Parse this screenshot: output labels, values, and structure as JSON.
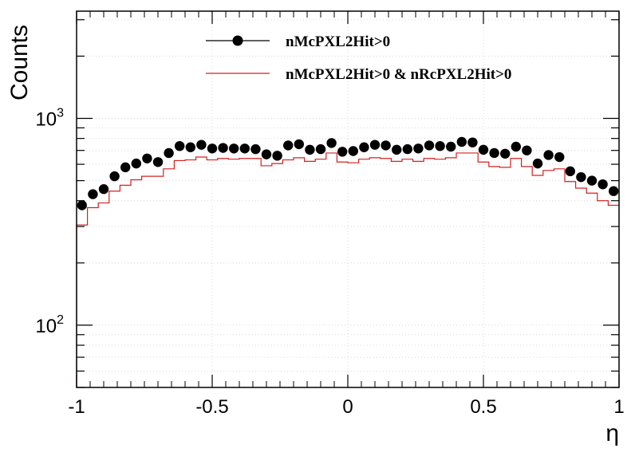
{
  "chart_data": {
    "type": "line",
    "xlabel": "η",
    "ylabel": "Counts",
    "xlim": [
      -1,
      1
    ],
    "ylim": [
      50,
      3300
    ],
    "yscale": "log",
    "grid": true,
    "legend": "top-center",
    "x_ticks": [
      -1,
      -0.5,
      0,
      0.5,
      1
    ],
    "x_tick_labels": [
      "-1",
      "-0.5",
      "0",
      "0.5",
      "1"
    ],
    "y_major_ticks": [
      100,
      1000
    ],
    "y_tick_bases": [
      "10",
      "10"
    ],
    "y_tick_exponents": [
      "2",
      "3"
    ],
    "x_bins": 50,
    "series": [
      {
        "name": "nMcPXL2Hit>0",
        "style": "markers",
        "color": "#000000",
        "values": [
          380,
          430,
          455,
          525,
          580,
          605,
          640,
          615,
          680,
          735,
          725,
          745,
          715,
          720,
          715,
          715,
          710,
          670,
          660,
          740,
          750,
          705,
          710,
          760,
          690,
          695,
          725,
          745,
          740,
          705,
          710,
          715,
          740,
          735,
          730,
          770,
          765,
          705,
          680,
          675,
          730,
          700,
          605,
          665,
          650,
          555,
          520,
          500,
          480,
          445
        ]
      },
      {
        "name": "nMcPXL2Hit>0 & nRcPXL2Hit>0",
        "style": "step",
        "color": "#d42020",
        "values": [
          305,
          370,
          390,
          445,
          475,
          505,
          525,
          525,
          570,
          625,
          630,
          650,
          630,
          640,
          635,
          640,
          640,
          590,
          605,
          630,
          645,
          620,
          635,
          680,
          615,
          610,
          635,
          645,
          640,
          620,
          635,
          620,
          640,
          635,
          645,
          680,
          680,
          615,
          585,
          580,
          640,
          585,
          530,
          560,
          570,
          495,
          460,
          435,
          400,
          380
        ]
      }
    ]
  }
}
